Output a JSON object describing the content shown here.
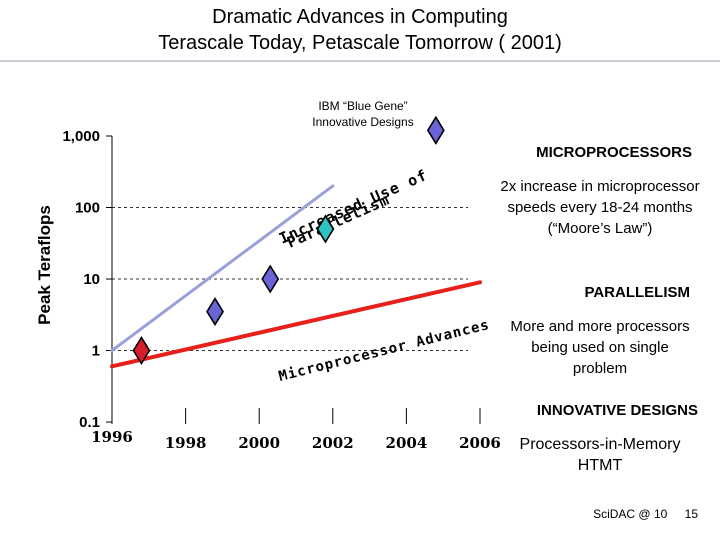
{
  "header": {
    "title": "Dramatic Advances in Computing",
    "subtitle": "Terascale Today, Petascale Tomorrow ( 2001)"
  },
  "chart_data": {
    "type": "scatter",
    "title": "Dramatic Advances in Computing",
    "xlabel": "",
    "ylabel": "Peak Teraflops",
    "y_scale": "log",
    "ylim": [
      0.1,
      1000
    ],
    "xlim": [
      1996,
      2006
    ],
    "y_tick_labels": [
      "1,000",
      "100",
      "10",
      "1",
      "0.1"
    ],
    "y_tick_values": [
      1000,
      100,
      10,
      1,
      0.1
    ],
    "x_tick_labels": [
      "1996",
      "1998",
      "2000",
      "2002",
      "2004",
      "2006"
    ],
    "x_tick_values": [
      1996,
      1998,
      2000,
      2002,
      2004,
      2006
    ],
    "series": [
      {
        "name": "Microprocessor Advances",
        "kind": "line",
        "color": "#e8201c",
        "points": [
          {
            "x": 1996,
            "y": 0.6
          },
          {
            "x": 2006,
            "y": 9
          }
        ]
      },
      {
        "name": "Increased Use of Parallelism",
        "kind": "line",
        "color": "#9aa0d8",
        "points": [
          {
            "x": 1996,
            "y": 1
          },
          {
            "x": 2002,
            "y": 200
          }
        ]
      }
    ],
    "points": [
      {
        "x": 1996.8,
        "y": 1,
        "color": "#d81e2a"
      },
      {
        "x": 1998.8,
        "y": 3.5,
        "color": "#6a64d6"
      },
      {
        "x": 2000.3,
        "y": 10,
        "color": "#6a64d6"
      },
      {
        "x": 2001.8,
        "y": 50,
        "color": "#2ec4c4"
      },
      {
        "x": 2004.8,
        "y": 1200,
        "color": "#6a64d6"
      }
    ],
    "annotations": {
      "ibm": "IBM “Blue Gene”\nInnovative Designs",
      "line_top_1": "Increased Use of",
      "line_top_2": "Parallelism",
      "line_bottom_1": "Microprocessor Advances"
    }
  },
  "sidebar": {
    "micro_head": "MICROPROCESSORS",
    "micro_text": "2x increase in microprocessor speeds every 18-24 months (“Moore’s Law”)",
    "parallel_head": "PARALLELISM",
    "parallel_text": "More and more processors being used on single problem",
    "innov_head": "INNOVATIVE DESIGNS",
    "innov_text": "Processors-in-Memory HTMT"
  },
  "footer": {
    "label": "SciDAC @ 10",
    "page": "15"
  }
}
